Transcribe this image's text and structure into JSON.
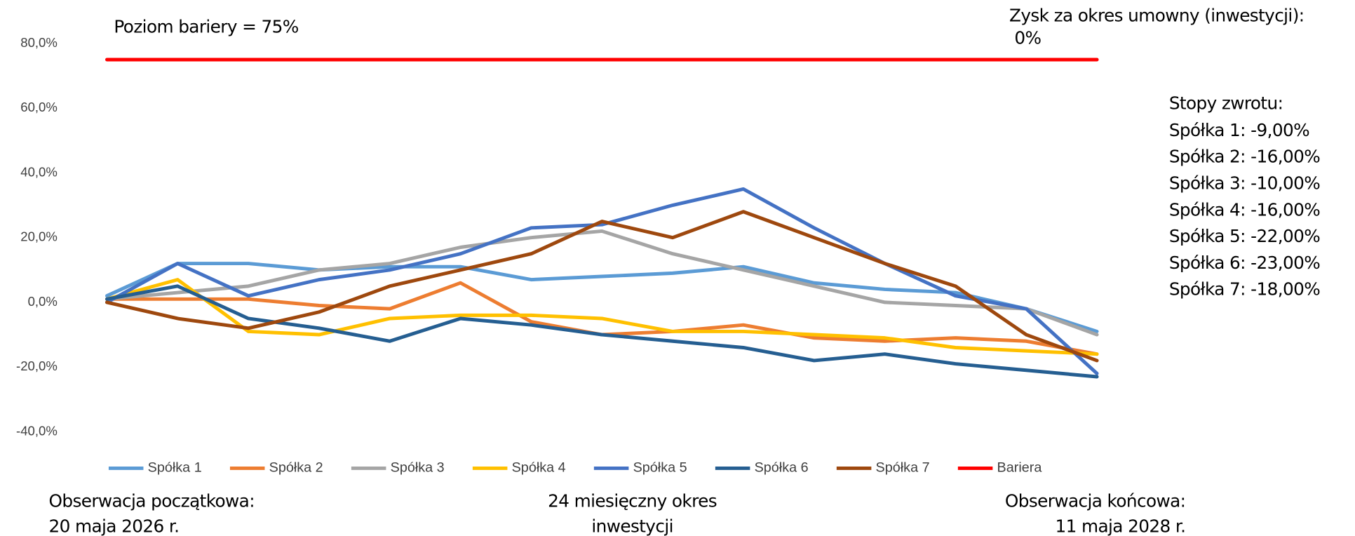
{
  "chart_data": {
    "type": "line",
    "categories": [
      null,
      null,
      null,
      null,
      null,
      null,
      null,
      null,
      null,
      null,
      null,
      null,
      null,
      null,
      null
    ],
    "series": [
      {
        "name": "Spółka 1",
        "color": "#5b9bd5",
        "values": [
          2,
          12,
          12,
          10,
          11,
          11,
          7,
          8,
          9,
          11,
          6,
          4,
          3,
          -2,
          -9
        ]
      },
      {
        "name": "Spółka 2",
        "color": "#ed7d31",
        "values": [
          1,
          1,
          1,
          -1,
          -2,
          6,
          -6,
          -10,
          -9,
          -7,
          -11,
          -12,
          -11,
          -12,
          -16
        ]
      },
      {
        "name": "Spółka 3",
        "color": "#a5a5a5",
        "values": [
          1,
          3,
          5,
          10,
          12,
          17,
          20,
          22,
          15,
          10,
          5,
          0,
          -1,
          -2,
          -10
        ]
      },
      {
        "name": "Spółka 4",
        "color": "#ffc000",
        "values": [
          1,
          7,
          -9,
          -10,
          -5,
          -4,
          -4,
          -5,
          -9,
          -9,
          -10,
          -11,
          -14,
          -15,
          -16
        ]
      },
      {
        "name": "Spółka 5",
        "color": "#4472c4",
        "values": [
          0,
          12,
          2,
          7,
          10,
          15,
          23,
          24,
          30,
          35,
          23,
          12,
          2,
          -2,
          -22
        ]
      },
      {
        "name": "Spółka 6",
        "color": "#255e91",
        "values": [
          1,
          5,
          -5,
          -8,
          -12,
          -5,
          -7,
          -10,
          -12,
          -14,
          -18,
          -16,
          -19,
          -21,
          -23
        ]
      },
      {
        "name": "Spółka 7",
        "color": "#9e480e",
        "values": [
          0,
          -5,
          -8,
          -3,
          5,
          10,
          15,
          25,
          20,
          28,
          20,
          12,
          5,
          -10,
          -18
        ]
      },
      {
        "name": "Bariera",
        "color": "#ff0000",
        "values": [
          75,
          75,
          75,
          75,
          75,
          75,
          75,
          75,
          75,
          75,
          75,
          75,
          75,
          75,
          75
        ]
      }
    ],
    "ylim": [
      -40,
      80
    ],
    "yticks": [
      {
        "value": -40,
        "label": "-40,0%"
      },
      {
        "value": -20,
        "label": "-20,0%"
      },
      {
        "value": 0,
        "label": "0,0%"
      },
      {
        "value": 20,
        "label": "20,0%"
      },
      {
        "value": 40,
        "label": "40,0%"
      },
      {
        "value": 60,
        "label": "60,0%"
      },
      {
        "value": 80,
        "label": "80,0%"
      }
    ],
    "grid": false,
    "legend": "bottom",
    "annotations": {
      "barrier": "Poziom bariery = 75%",
      "profit_label": "Zysk za okres umowny (inwestycji):",
      "profit_value": "0%",
      "returns_title": "Stopy zwrotu:",
      "returns": [
        "Spółka 1: -9,00%",
        "Spółka 2: -16,00%",
        "Spółka 3: -10,00%",
        "Spółka 4: -16,00%",
        "Spółka 5: -22,00%",
        "Spółka 6: -23,00%",
        "Spółka 7: -18,00%"
      ],
      "start": [
        "Obserwacja początkowa:",
        "20 maja 2026 r."
      ],
      "period": [
        "24 miesięczny okres",
        "inwestycji"
      ],
      "end": [
        "Obserwacja  końcowa:",
        "11 maja 2028 r."
      ]
    }
  }
}
